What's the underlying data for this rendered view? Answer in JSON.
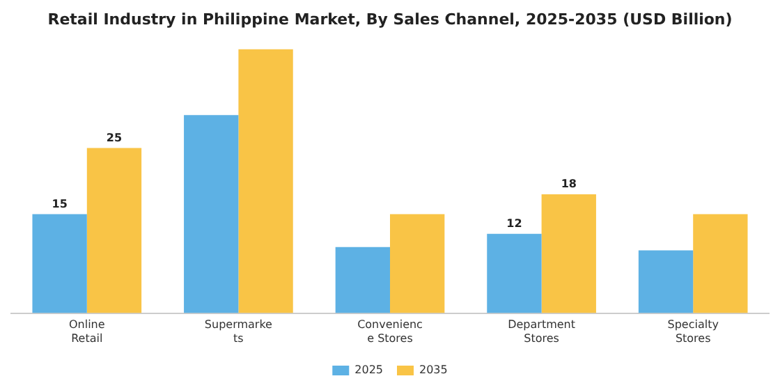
{
  "chart_data": {
    "type": "bar",
    "title": "Retail Industry in Philippine Market, By Sales Channel, 2025-2035 (USD Billion)",
    "categories": [
      "Online Retail",
      "Supermarkets",
      "Convenience Stores",
      "Department Stores",
      "Specialty Stores"
    ],
    "series": [
      {
        "name": "2025",
        "color": "#5db1e4",
        "values": [
          15,
          30,
          10,
          12,
          9.5
        ],
        "value_labels": [
          "15",
          null,
          null,
          "12",
          null
        ]
      },
      {
        "name": "2035",
        "color": "#f9c446",
        "values": [
          25,
          40,
          15,
          18,
          15
        ],
        "value_labels": [
          "25",
          null,
          null,
          "18",
          null
        ]
      }
    ],
    "grid": false,
    "legend": "bottom",
    "tick_labels": "x"
  }
}
